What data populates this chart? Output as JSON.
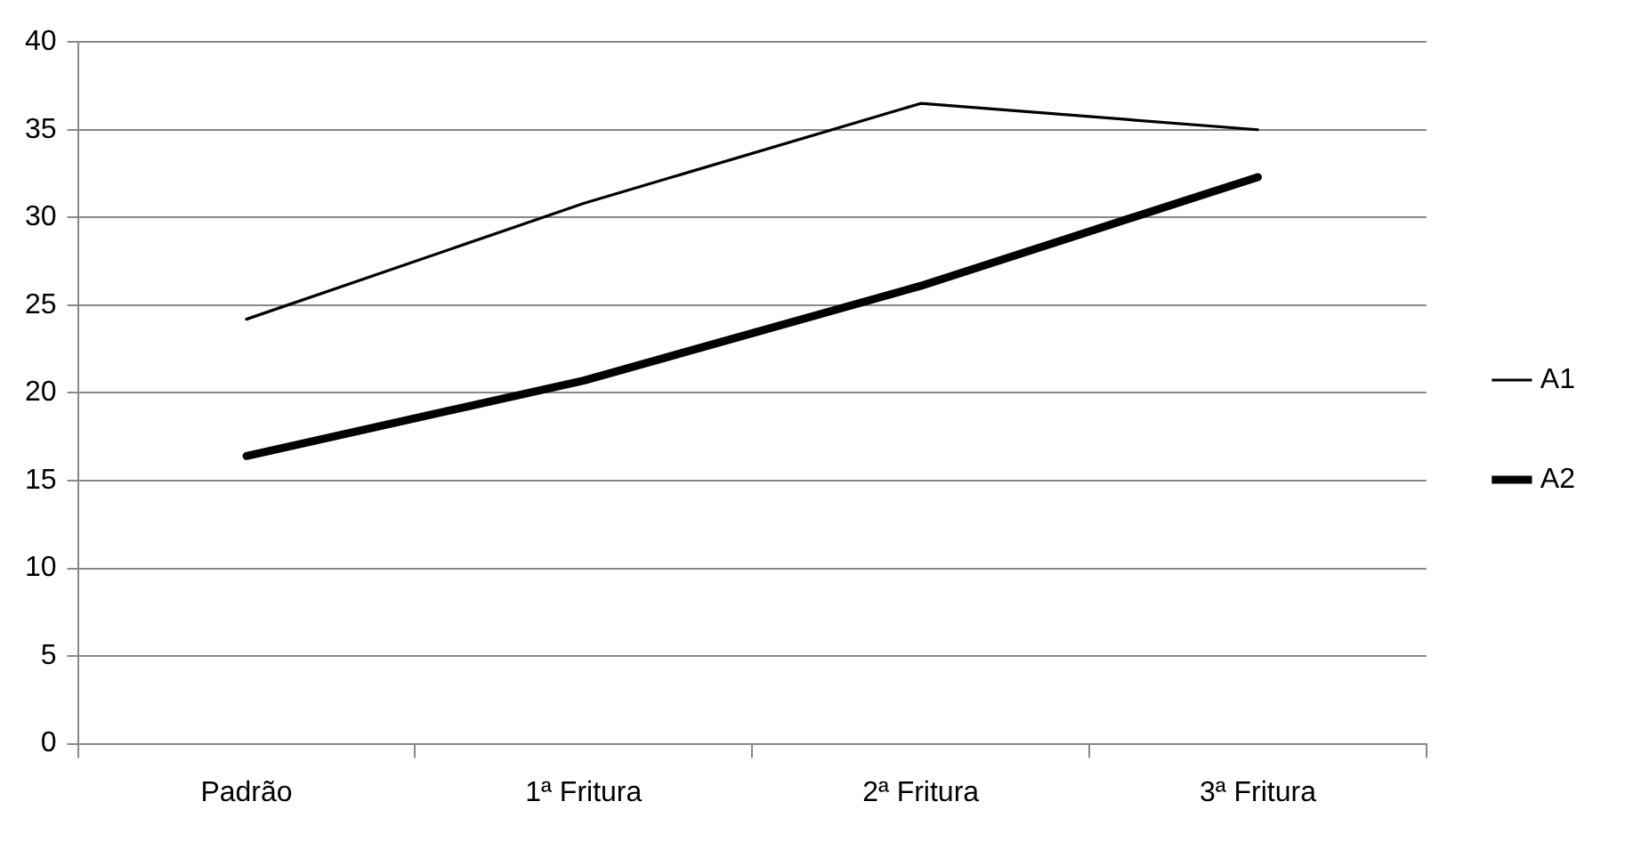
{
  "chart_data": {
    "type": "line",
    "categories": [
      "Padrão",
      "1ª Fritura",
      "2ª Fritura",
      "3ª Fritura"
    ],
    "series": [
      {
        "name": "A1",
        "color": "#000000",
        "values": [
          24.2,
          30.8,
          36.5,
          35.0
        ]
      },
      {
        "name": "A2",
        "color": "#000000",
        "values": [
          16.4,
          20.7,
          26.1,
          32.3
        ]
      }
    ],
    "ylim": [
      0,
      40
    ],
    "yticks": [
      0,
      5,
      10,
      15,
      20,
      25,
      30,
      35,
      40
    ],
    "grid": "y",
    "legend": "right",
    "marker": "none",
    "line_style": "solid"
  }
}
